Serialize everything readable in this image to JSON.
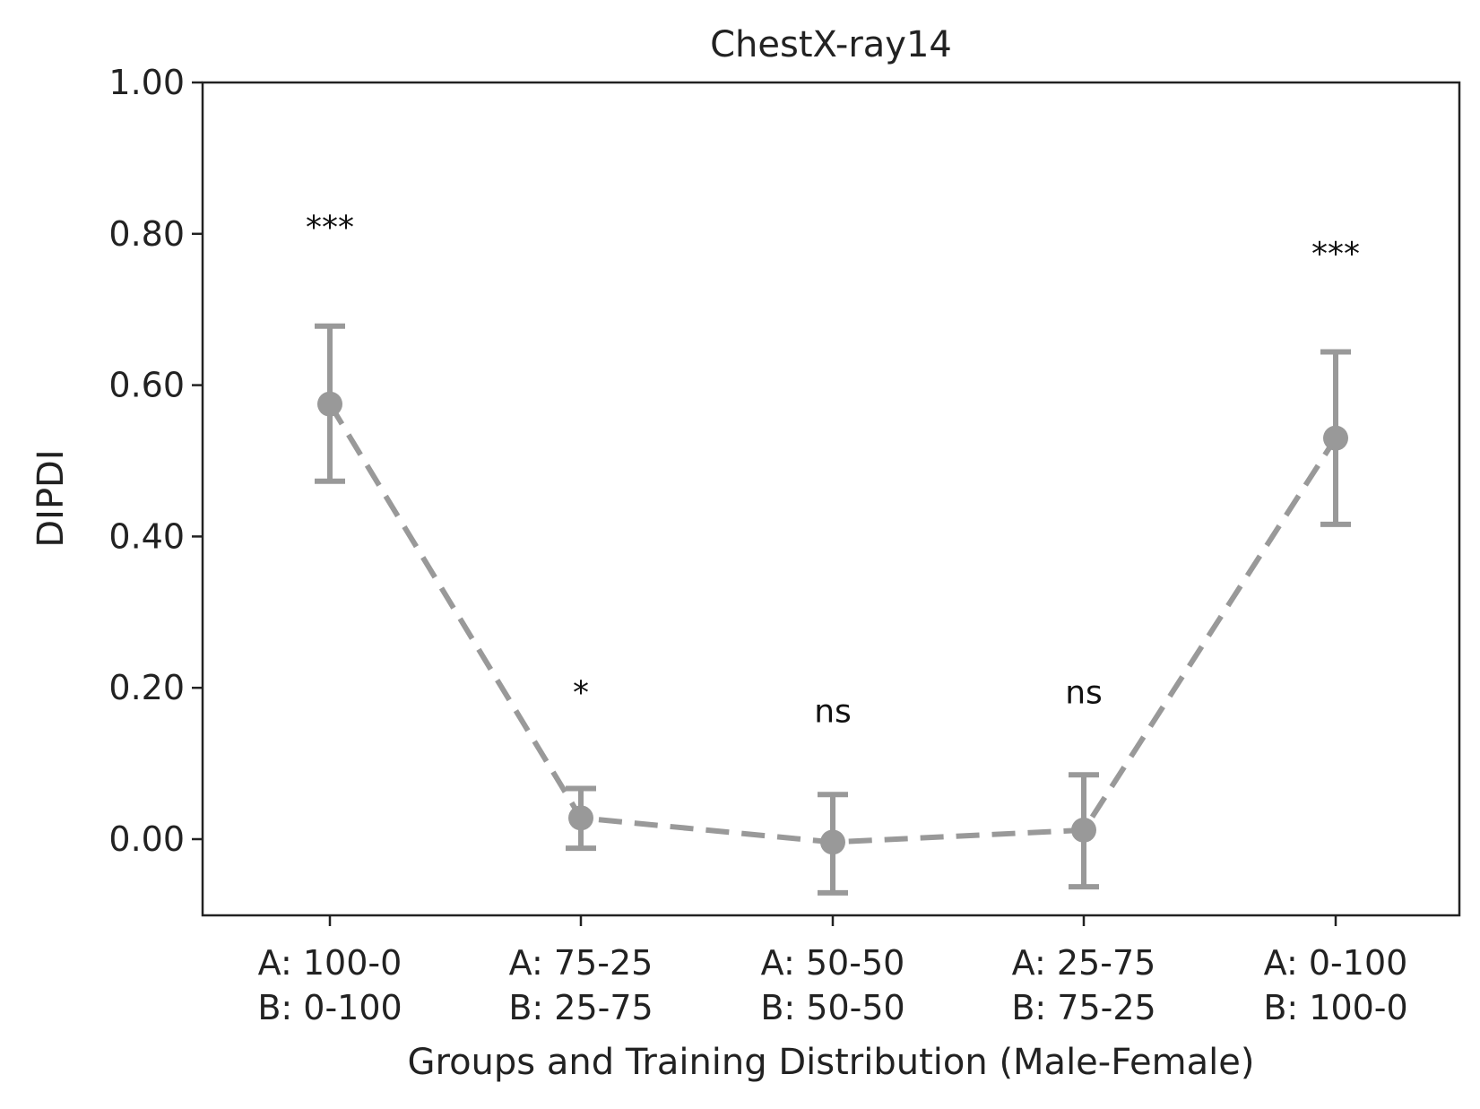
{
  "chart_data": {
    "type": "line",
    "title": "ChestX-ray14",
    "xlabel": "Groups and Training Distribution (Male-Female)",
    "ylabel": "DIPDI",
    "ylim": [
      -0.1,
      1.0
    ],
    "yticks": [
      "0.00",
      "0.20",
      "0.40",
      "0.60",
      "0.80",
      "1.00"
    ],
    "categories": [
      [
        "A: 100-0",
        "B: 0-100"
      ],
      [
        "A: 75-25",
        "B: 25-75"
      ],
      [
        "A: 50-50",
        "B: 50-50"
      ],
      [
        "A: 25-75",
        "B: 75-25"
      ],
      [
        "A: 0-100",
        "B: 100-0"
      ]
    ],
    "series": [
      {
        "values": [
          0.575,
          0.028,
          -0.004,
          0.012,
          0.53
        ],
        "err_low": [
          0.473,
          -0.012,
          -0.071,
          -0.063,
          0.416
        ],
        "err_high": [
          0.678,
          0.067,
          0.059,
          0.085,
          0.644
        ]
      }
    ],
    "annotations": [
      {
        "text": "***",
        "y": 0.81
      },
      {
        "text": "*",
        "y": 0.195
      },
      {
        "text": "ns",
        "y": 0.17
      },
      {
        "text": "ns",
        "y": 0.195
      },
      {
        "text": "***",
        "y": 0.775
      }
    ],
    "line_color": "#999999",
    "line_style": "dashed",
    "grid": false,
    "legend": false
  }
}
